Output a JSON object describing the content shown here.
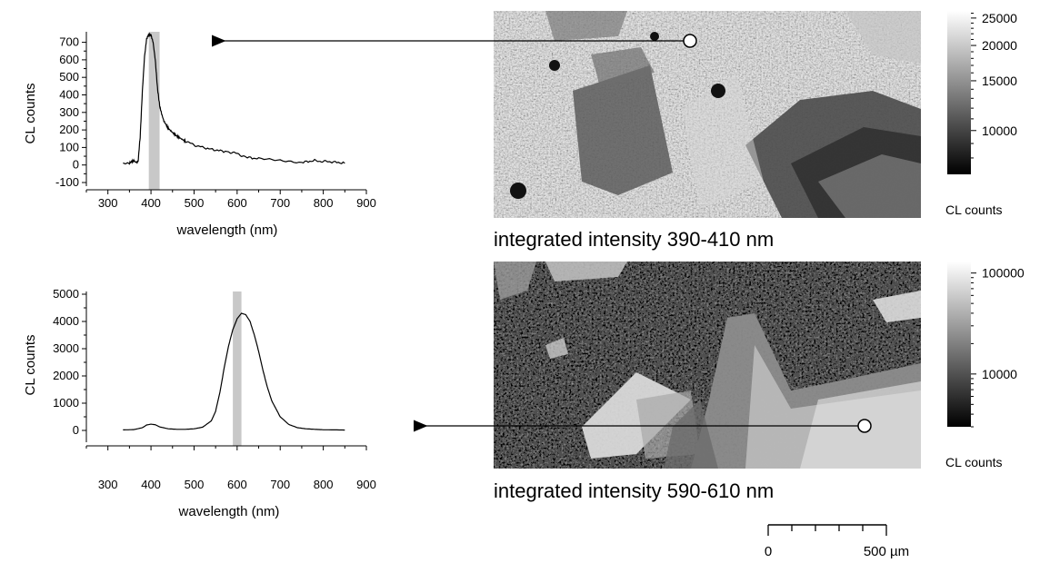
{
  "chart_data": [
    {
      "type": "line",
      "xlabel": "wavelength (nm)",
      "ylabel": "CL counts",
      "xlim": [
        250,
        900
      ],
      "ylim": [
        -100,
        760
      ],
      "x_ticks": [
        "300",
        "400",
        "500",
        "600",
        "700",
        "800",
        "900"
      ],
      "y_ticks": [
        "-100",
        "0",
        "100",
        "200",
        "300",
        "400",
        "500",
        "600",
        "700"
      ],
      "highlight_band_nm": [
        395,
        420
      ],
      "series": [
        {
          "x": [
            335,
            350,
            360,
            365,
            370,
            375,
            380,
            385,
            390,
            395,
            400,
            405,
            410,
            415,
            420,
            425,
            430,
            440,
            450,
            460,
            470,
            480,
            500,
            520,
            550,
            580,
            600,
            620,
            650,
            700,
            750,
            780,
            800,
            820,
            850
          ],
          "values": [
            5,
            12,
            25,
            15,
            20,
            160,
            420,
            620,
            720,
            745,
            740,
            700,
            600,
            440,
            340,
            290,
            250,
            210,
            185,
            165,
            150,
            135,
            115,
            100,
            85,
            75,
            65,
            45,
            35,
            25,
            15,
            25,
            20,
            18,
            10
          ]
        }
      ]
    },
    {
      "type": "line",
      "xlabel": "wavelength (nm)",
      "ylabel": "CL counts",
      "xlim": [
        250,
        900
      ],
      "ylim": [
        -300,
        5100
      ],
      "x_ticks": [
        "300",
        "400",
        "500",
        "600",
        "700",
        "800",
        "900"
      ],
      "y_ticks": [
        "0",
        "1000",
        "2000",
        "3000",
        "4000",
        "5000"
      ],
      "highlight_band_nm": [
        590,
        610
      ],
      "series": [
        {
          "x": [
            335,
            360,
            380,
            390,
            400,
            410,
            420,
            440,
            460,
            480,
            500,
            520,
            540,
            550,
            560,
            570,
            580,
            590,
            600,
            610,
            620,
            630,
            640,
            650,
            660,
            670,
            680,
            700,
            720,
            740,
            760,
            780,
            800,
            850
          ],
          "values": [
            20,
            30,
            100,
            200,
            230,
            210,
            130,
            60,
            40,
            40,
            60,
            120,
            350,
            700,
            1400,
            2300,
            3100,
            3700,
            4100,
            4300,
            4250,
            4000,
            3500,
            2900,
            2200,
            1600,
            1100,
            500,
            220,
            100,
            60,
            40,
            25,
            15
          ]
        }
      ]
    }
  ],
  "maps": [
    {
      "caption": "integrated intensity 390-410 nm",
      "colorbar_ticks": [
        "25000",
        "20000",
        "15000",
        "10000"
      ],
      "colorbar_label": "CL counts"
    },
    {
      "caption": "integrated intensity 590-610 nm",
      "colorbar_ticks": [
        "100000",
        "10000"
      ],
      "colorbar_label": "CL counts"
    }
  ],
  "scale_bar": {
    "labels": [
      "0",
      "500 µm"
    ]
  }
}
